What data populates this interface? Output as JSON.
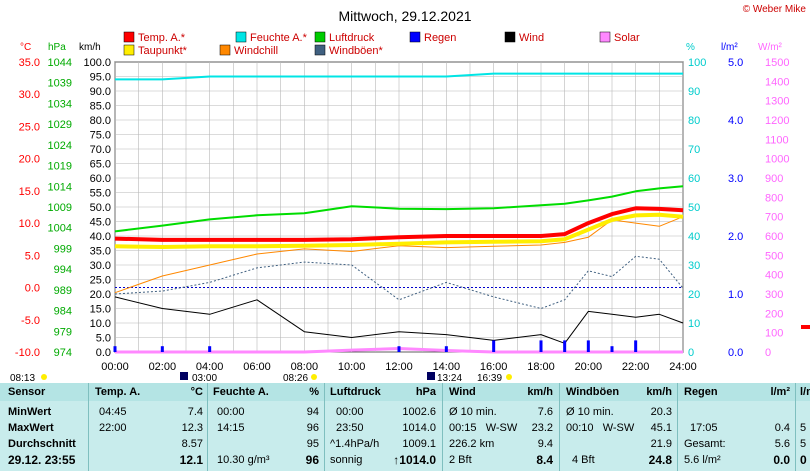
{
  "title": "Mittwoch, 29.12.2021",
  "credit": "© Weber Mike",
  "legend": [
    {
      "label": "Temp. A.*",
      "color": "#ff0000"
    },
    {
      "label": "Feuchte A.*",
      "color": "#00e5e5"
    },
    {
      "label": "Luftdruck",
      "color": "#00cc00"
    },
    {
      "label": "Regen",
      "color": "#0000ff"
    },
    {
      "label": "Wind",
      "color": "#000000"
    },
    {
      "label": "Solar",
      "color": "#ff88ff"
    },
    {
      "label": "Taupunkt*",
      "color": "#ffee00"
    },
    {
      "label": "Windchill",
      "color": "#ff8800"
    },
    {
      "label": "Windböen*",
      "color": "#406080"
    }
  ],
  "axis_units": {
    "temp": "°C",
    "press": "hPa",
    "wind": "km/h",
    "hum": "%",
    "rain": "l/m²",
    "solar": "W/m²"
  },
  "axis_ticks": {
    "temp": [
      "35.0",
      "30.0",
      "25.0",
      "20.0",
      "15.0",
      "10.0",
      "5.0",
      "0.0",
      "-5.0",
      "-10.0"
    ],
    "press": [
      "1044",
      "1039",
      "1034",
      "1029",
      "1024",
      "1019",
      "1014",
      "1009",
      "1004",
      "999",
      "994",
      "989",
      "984",
      "979",
      "974"
    ],
    "wind": [
      "100.0",
      "95.0",
      "90.0",
      "85.0",
      "80.0",
      "75.0",
      "70.0",
      "65.0",
      "60.0",
      "55.0",
      "50.0",
      "45.0",
      "40.0",
      "35.0",
      "30.0",
      "25.0",
      "20.0",
      "15.0",
      "10.0",
      "5.0",
      "0.0"
    ],
    "hum": [
      "100",
      "90",
      "80",
      "70",
      "60",
      "50",
      "40",
      "30",
      "20",
      "10",
      "0"
    ],
    "rain": [
      "5.0",
      "4.0",
      "3.0",
      "2.0",
      "1.0",
      "0.0"
    ],
    "solar": [
      "1500",
      "1400",
      "1300",
      "1200",
      "1100",
      "1000",
      "900",
      "800",
      "700",
      "600",
      "500",
      "400",
      "300",
      "200",
      "100",
      "0"
    ],
    "time": [
      "00:00",
      "02:00",
      "04:00",
      "06:00",
      "08:00",
      "10:00",
      "12:00",
      "14:00",
      "16:00",
      "18:00",
      "20:00",
      "22:00",
      "24:00"
    ]
  },
  "events": {
    "sunrise": "08:26",
    "sunset": "16:39",
    "moonrise": "13:24",
    "moonset": "03:00",
    "day_start": "08:13"
  },
  "chart_data": {
    "type": "line",
    "title": "Mittwoch, 29.12.2021",
    "x": [
      "00:00",
      "02:00",
      "04:00",
      "06:00",
      "08:00",
      "10:00",
      "12:00",
      "14:00",
      "16:00",
      "18:00",
      "19:00",
      "20:00",
      "21:00",
      "22:00",
      "23:00",
      "24:00"
    ],
    "xlim": [
      "00:00",
      "24:00"
    ],
    "series": [
      {
        "name": "Temp. A.*",
        "axis": "temp °C",
        "values": [
          7.6,
          7.4,
          7.4,
          7.4,
          7.4,
          7.5,
          7.8,
          8.0,
          8.0,
          8.0,
          8.3,
          10.0,
          11.4,
          12.3,
          12.2,
          12.0
        ]
      },
      {
        "name": "Taupunkt*",
        "axis": "temp °C",
        "values": [
          6.4,
          6.3,
          6.4,
          6.4,
          6.5,
          6.6,
          6.8,
          7.0,
          7.1,
          7.2,
          7.5,
          9.0,
          10.5,
          11.2,
          11.3,
          11.0
        ]
      },
      {
        "name": "Windchill",
        "axis": "temp °C",
        "values": [
          -0.8,
          1.8,
          3.5,
          5.2,
          6.0,
          5.6,
          6.5,
          6.2,
          6.4,
          6.6,
          7.0,
          7.8,
          10.5,
          10.0,
          9.5,
          11.0
        ]
      },
      {
        "name": "Feuchte A.*",
        "axis": "%",
        "values": [
          94,
          94,
          95,
          95,
          95,
          95,
          95,
          95,
          96,
          96,
          96,
          96,
          96,
          96,
          96,
          96
        ]
      },
      {
        "name": "Luftdruck",
        "axis": "hPa",
        "values": [
          1003.1,
          1004.5,
          1006.0,
          1007.0,
          1007.5,
          1009.2,
          1008.6,
          1008.5,
          1008.7,
          1009.4,
          1009.8,
          1010.6,
          1011.5,
          1012.8,
          1013.5,
          1014.0
        ]
      },
      {
        "name": "Wind",
        "axis": "km/h",
        "values": [
          19,
          15,
          13,
          18,
          7,
          5,
          7,
          6,
          4,
          6,
          3,
          14,
          13,
          12,
          13,
          10
        ]
      },
      {
        "name": "Windböen*",
        "axis": "km/h",
        "values": [
          20,
          21,
          24,
          29,
          31,
          30,
          18,
          24,
          19,
          15,
          18,
          28,
          26,
          33,
          32,
          22
        ]
      },
      {
        "name": "Regen",
        "axis": "l/m²",
        "values": [
          0.1,
          0.1,
          0.1,
          0.0,
          0.0,
          0.0,
          0.1,
          0.1,
          0.2,
          0.2,
          0.2,
          0.2,
          0.1,
          0.2,
          0.0,
          0.0
        ]
      },
      {
        "name": "Solar",
        "axis": "W/m²",
        "values": [
          0,
          0,
          0,
          0,
          0,
          10,
          18,
          8,
          0,
          0,
          0,
          0,
          0,
          0,
          0,
          0
        ]
      }
    ],
    "ylim_temp": [
      -10,
      35
    ],
    "ylim_press": [
      974,
      1044
    ],
    "ylim_wind": [
      0,
      100
    ],
    "ylim_hum": [
      0,
      100
    ],
    "ylim_rain": [
      0,
      5
    ],
    "ylim_solar": [
      0,
      1500
    ],
    "grid": true
  },
  "table": {
    "sensor": {
      "header": "Sensor",
      "rows": [
        "MinWert",
        "MaxWert",
        "Durchschnitt",
        "29.12. 23:55"
      ]
    },
    "temp": {
      "header": "Temp. A.",
      "unit": "°C",
      "rows": [
        [
          "04:45",
          "7.4"
        ],
        [
          "22:00",
          "12.3"
        ],
        [
          "",
          "8.57"
        ],
        [
          "",
          "12.1"
        ]
      ]
    },
    "hum": {
      "header": "Feuchte A.",
      "unit": "%",
      "rows": [
        [
          "00:00",
          "94"
        ],
        [
          "14:15",
          "96"
        ],
        [
          "",
          "95"
        ],
        [
          "10.30 g/m³",
          "96"
        ]
      ]
    },
    "press": {
      "header": "Luftdruck",
      "unit": "hPa",
      "rows": [
        [
          "00:00",
          "1002.6"
        ],
        [
          "23:50",
          "1014.0"
        ],
        [
          "^1.4hPa/h",
          "1009.1"
        ],
        [
          "sonnig",
          "↑1014.0"
        ]
      ]
    },
    "wind": {
      "header": "Wind",
      "unit": "km/h",
      "rows": [
        [
          "Ø 10 min.",
          "7.6"
        ],
        [
          "00:15   W-SW",
          "23.2"
        ],
        [
          "226.2 km",
          "9.4"
        ],
        [
          "2 Bft",
          "8.4"
        ]
      ]
    },
    "gust": {
      "header": "Windböen",
      "unit": "km/h",
      "rows": [
        [
          "Ø 10 min.",
          "20.3"
        ],
        [
          "00:10   W-SW",
          "45.1"
        ],
        [
          "",
          "21.9"
        ],
        [
          "4 Bft",
          "24.8"
        ]
      ]
    },
    "rain": {
      "header": "Regen",
      "unit": "l/m²",
      "rows": [
        [
          "",
          ""
        ],
        [
          "17:05",
          "0.4"
        ],
        [
          "Gesamt:",
          "5.6"
        ],
        [
          "5.6 l/m²",
          "0.0"
        ]
      ]
    },
    "extra": {
      "header": "",
      "unit": "l/m²",
      "rows": [
        "",
        "5",
        "5",
        "0"
      ]
    }
  }
}
